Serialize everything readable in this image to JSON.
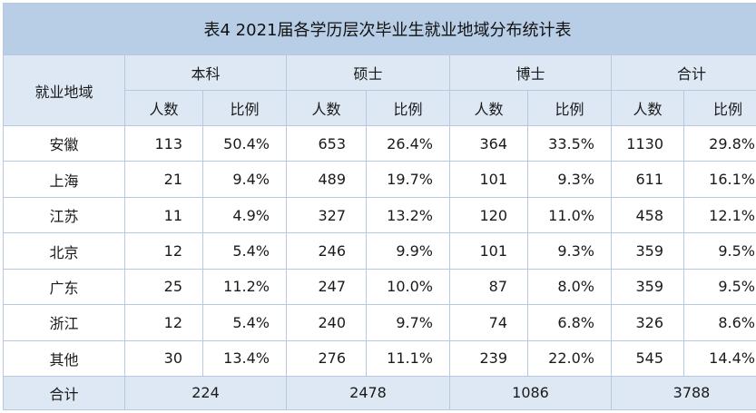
{
  "title": "表4  2021届各学历层次毕业生就业地域分布统计表",
  "header": {
    "region_label": "就业地域",
    "groups": [
      "本科",
      "硕士",
      "博士",
      "合计"
    ],
    "count_label": "人数",
    "ratio_label": "比例"
  },
  "rows": [
    {
      "region": "安徽",
      "values": [
        "113",
        "50.4%",
        "653",
        "26.4%",
        "364",
        "33.5%",
        "1130",
        "29.8%"
      ]
    },
    {
      "region": "上海",
      "values": [
        "21",
        "9.4%",
        "489",
        "19.7%",
        "101",
        "9.3%",
        "611",
        "16.1%"
      ]
    },
    {
      "region": "江苏",
      "values": [
        "11",
        "4.9%",
        "327",
        "13.2%",
        "120",
        "11.0%",
        "458",
        "12.1%"
      ]
    },
    {
      "region": "北京",
      "values": [
        "12",
        "5.4%",
        "246",
        "9.9%",
        "101",
        "9.3%",
        "359",
        "9.5%"
      ]
    },
    {
      "region": "广东",
      "values": [
        "25",
        "11.2%",
        "247",
        "10.0%",
        "87",
        "8.0%",
        "359",
        "9.5%"
      ]
    },
    {
      "region": "浙江",
      "values": [
        "12",
        "5.4%",
        "240",
        "9.7%",
        "74",
        "6.8%",
        "326",
        "8.6%"
      ]
    },
    {
      "region": "其他",
      "values": [
        "30",
        "13.4%",
        "276",
        "11.1%",
        "239",
        "22.0%",
        "545",
        "14.4%"
      ]
    }
  ],
  "total": {
    "label": "合计",
    "values": [
      "224",
      "2478",
      "1086",
      "3788"
    ]
  }
}
